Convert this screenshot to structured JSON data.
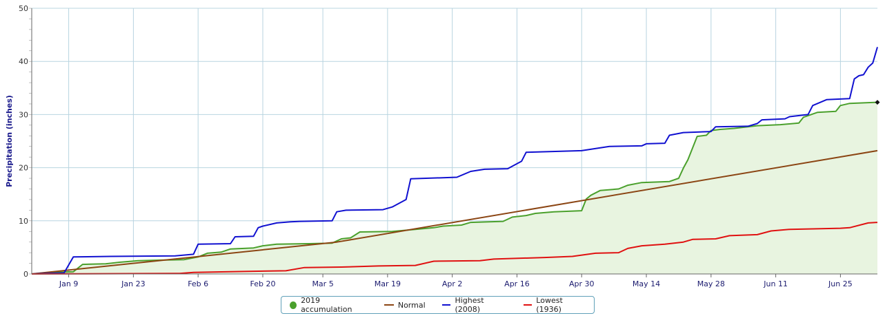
{
  "chart_data": {
    "type": "line",
    "title": "",
    "ylabel": "Precipitation (inches)",
    "xlabel": "",
    "ylim": [
      0,
      50
    ],
    "xlim": [
      "2019-01-01",
      "2019-07-03"
    ],
    "grid": true,
    "legend_position": "bottom",
    "y_ticks": [
      "0",
      "10",
      "20",
      "30",
      "40",
      "50"
    ],
    "x_ticks": [
      {
        "label": "Jan 9",
        "date": "2019-01-09"
      },
      {
        "label": "Jan 23",
        "date": "2019-01-23"
      },
      {
        "label": "Feb 6",
        "date": "2019-02-06"
      },
      {
        "label": "Feb 20",
        "date": "2019-02-20"
      },
      {
        "label": "Mar 5",
        "date": "2019-03-05"
      },
      {
        "label": "Mar 19",
        "date": "2019-03-19"
      },
      {
        "label": "Apr 2",
        "date": "2019-04-02"
      },
      {
        "label": "Apr 16",
        "date": "2019-04-16"
      },
      {
        "label": "Apr 30",
        "date": "2019-04-30"
      },
      {
        "label": "May 14",
        "date": "2019-05-14"
      },
      {
        "label": "May 28",
        "date": "2019-05-28"
      },
      {
        "label": "Jun 11",
        "date": "2019-06-11"
      },
      {
        "label": "Jun 25",
        "date": "2019-06-25"
      }
    ],
    "series": [
      {
        "name": "2019 accumulation",
        "color": "#4aa02c",
        "fill": "#e8f4e0",
        "marker": "dot",
        "points": [
          [
            "2019-01-01",
            0
          ],
          [
            "2019-01-05",
            0.3
          ],
          [
            "2019-01-10",
            0.4
          ],
          [
            "2019-01-12",
            1.8
          ],
          [
            "2019-01-17",
            1.9
          ],
          [
            "2019-01-20",
            2.2
          ],
          [
            "2019-01-24",
            2.5
          ],
          [
            "2019-01-29",
            2.6
          ],
          [
            "2019-02-03",
            2.7
          ],
          [
            "2019-02-06",
            3.2
          ],
          [
            "2019-02-08",
            3.9
          ],
          [
            "2019-02-11",
            4.1
          ],
          [
            "2019-02-13",
            4.7
          ],
          [
            "2019-02-18",
            4.9
          ],
          [
            "2019-02-20",
            5.3
          ],
          [
            "2019-02-23",
            5.6
          ],
          [
            "2019-03-02",
            5.7
          ],
          [
            "2019-03-07",
            5.8
          ],
          [
            "2019-03-09",
            6.6
          ],
          [
            "2019-03-11",
            6.8
          ],
          [
            "2019-03-13",
            7.9
          ],
          [
            "2019-03-20",
            8.0
          ],
          [
            "2019-03-25",
            8.4
          ],
          [
            "2019-03-29",
            8.7
          ],
          [
            "2019-03-31",
            9.0
          ],
          [
            "2019-04-04",
            9.2
          ],
          [
            "2019-04-06",
            9.7
          ],
          [
            "2019-04-10",
            9.8
          ],
          [
            "2019-04-13",
            9.9
          ],
          [
            "2019-04-15",
            10.7
          ],
          [
            "2019-04-18",
            11.0
          ],
          [
            "2019-04-20",
            11.4
          ],
          [
            "2019-04-24",
            11.7
          ],
          [
            "2019-04-30",
            11.9
          ],
          [
            "2019-05-01",
            14.1
          ],
          [
            "2019-05-02",
            14.8
          ],
          [
            "2019-05-04",
            15.7
          ],
          [
            "2019-05-08",
            16.0
          ],
          [
            "2019-05-10",
            16.7
          ],
          [
            "2019-05-13",
            17.2
          ],
          [
            "2019-05-19",
            17.4
          ],
          [
            "2019-05-21",
            18.0
          ],
          [
            "2019-05-22",
            19.9
          ],
          [
            "2019-05-23",
            21.5
          ],
          [
            "2019-05-25",
            25.9
          ],
          [
            "2019-05-27",
            26.1
          ],
          [
            "2019-05-28",
            27.0
          ],
          [
            "2019-05-30",
            27.2
          ],
          [
            "2019-06-02",
            27.4
          ],
          [
            "2019-06-07",
            27.9
          ],
          [
            "2019-06-12",
            28.1
          ],
          [
            "2019-06-16",
            28.4
          ],
          [
            "2019-06-17",
            29.5
          ],
          [
            "2019-06-20",
            30.4
          ],
          [
            "2019-06-24",
            30.6
          ],
          [
            "2019-06-25",
            31.7
          ],
          [
            "2019-06-27",
            32.1
          ],
          [
            "2019-07-03",
            32.3
          ]
        ]
      },
      {
        "name": "Normal",
        "color": "#8b4513",
        "points": [
          [
            "2019-01-01",
            0
          ],
          [
            "2019-03-08",
            6.0
          ],
          [
            "2019-07-03",
            23.2
          ]
        ]
      },
      {
        "name": "Highest (2008)",
        "color": "#1010d0",
        "points": [
          [
            "2019-01-01",
            0
          ],
          [
            "2019-01-08",
            0.2
          ],
          [
            "2019-01-10",
            3.2
          ],
          [
            "2019-01-18",
            3.3
          ],
          [
            "2019-02-01",
            3.4
          ],
          [
            "2019-02-05",
            3.7
          ],
          [
            "2019-02-06",
            5.6
          ],
          [
            "2019-02-13",
            5.7
          ],
          [
            "2019-02-14",
            7.0
          ],
          [
            "2019-02-18",
            7.1
          ],
          [
            "2019-02-19",
            8.7
          ],
          [
            "2019-02-20",
            9.0
          ],
          [
            "2019-02-23",
            9.6
          ],
          [
            "2019-02-26",
            9.8
          ],
          [
            "2019-02-28",
            9.9
          ],
          [
            "2019-03-07",
            10.0
          ],
          [
            "2019-03-08",
            11.7
          ],
          [
            "2019-03-10",
            12.0
          ],
          [
            "2019-03-18",
            12.1
          ],
          [
            "2019-03-20",
            12.6
          ],
          [
            "2019-03-23",
            14.0
          ],
          [
            "2019-03-24",
            17.9
          ],
          [
            "2019-04-03",
            18.2
          ],
          [
            "2019-04-06",
            19.3
          ],
          [
            "2019-04-09",
            19.7
          ],
          [
            "2019-04-14",
            19.8
          ],
          [
            "2019-04-17",
            21.2
          ],
          [
            "2019-04-18",
            22.9
          ],
          [
            "2019-04-30",
            23.2
          ],
          [
            "2019-05-06",
            24.0
          ],
          [
            "2019-05-13",
            24.1
          ],
          [
            "2019-05-14",
            24.5
          ],
          [
            "2019-05-18",
            24.6
          ],
          [
            "2019-05-19",
            26.1
          ],
          [
            "2019-05-22",
            26.6
          ],
          [
            "2019-05-28",
            26.8
          ],
          [
            "2019-05-29",
            27.7
          ],
          [
            "2019-06-05",
            27.8
          ],
          [
            "2019-06-07",
            28.3
          ],
          [
            "2019-06-08",
            29.0
          ],
          [
            "2019-06-13",
            29.2
          ],
          [
            "2019-06-14",
            29.6
          ],
          [
            "2019-06-18",
            30.0
          ],
          [
            "2019-06-19",
            31.7
          ],
          [
            "2019-06-22",
            32.8
          ],
          [
            "2019-06-27",
            33.0
          ],
          [
            "2019-06-28",
            36.7
          ],
          [
            "2019-06-29",
            37.3
          ],
          [
            "2019-06-30",
            37.5
          ],
          [
            "2019-07-01",
            38.9
          ],
          [
            "2019-07-02",
            39.7
          ],
          [
            "2019-07-03",
            42.7
          ]
        ]
      },
      {
        "name": "Lowest (1936)",
        "color": "#e01010",
        "points": [
          [
            "2019-01-01",
            0
          ],
          [
            "2019-02-02",
            0.1
          ],
          [
            "2019-02-05",
            0.3
          ],
          [
            "2019-02-18",
            0.5
          ],
          [
            "2019-02-25",
            0.6
          ],
          [
            "2019-03-01",
            1.2
          ],
          [
            "2019-03-09",
            1.3
          ],
          [
            "2019-03-17",
            1.5
          ],
          [
            "2019-03-25",
            1.6
          ],
          [
            "2019-03-29",
            2.4
          ],
          [
            "2019-04-08",
            2.5
          ],
          [
            "2019-04-11",
            2.8
          ],
          [
            "2019-04-22",
            3.1
          ],
          [
            "2019-04-28",
            3.3
          ],
          [
            "2019-05-03",
            3.9
          ],
          [
            "2019-05-08",
            4.0
          ],
          [
            "2019-05-10",
            4.8
          ],
          [
            "2019-05-13",
            5.3
          ],
          [
            "2019-05-18",
            5.6
          ],
          [
            "2019-05-22",
            6.0
          ],
          [
            "2019-05-24",
            6.5
          ],
          [
            "2019-05-29",
            6.6
          ],
          [
            "2019-06-01",
            7.2
          ],
          [
            "2019-06-07",
            7.4
          ],
          [
            "2019-06-10",
            8.1
          ],
          [
            "2019-06-14",
            8.4
          ],
          [
            "2019-06-20",
            8.5
          ],
          [
            "2019-06-25",
            8.6
          ],
          [
            "2019-06-27",
            8.7
          ],
          [
            "2019-07-01",
            9.6
          ],
          [
            "2019-07-03",
            9.7
          ]
        ]
      }
    ],
    "end_marker": {
      "date": "2019-07-03",
      "value": 32.3,
      "color": "#111111"
    }
  }
}
